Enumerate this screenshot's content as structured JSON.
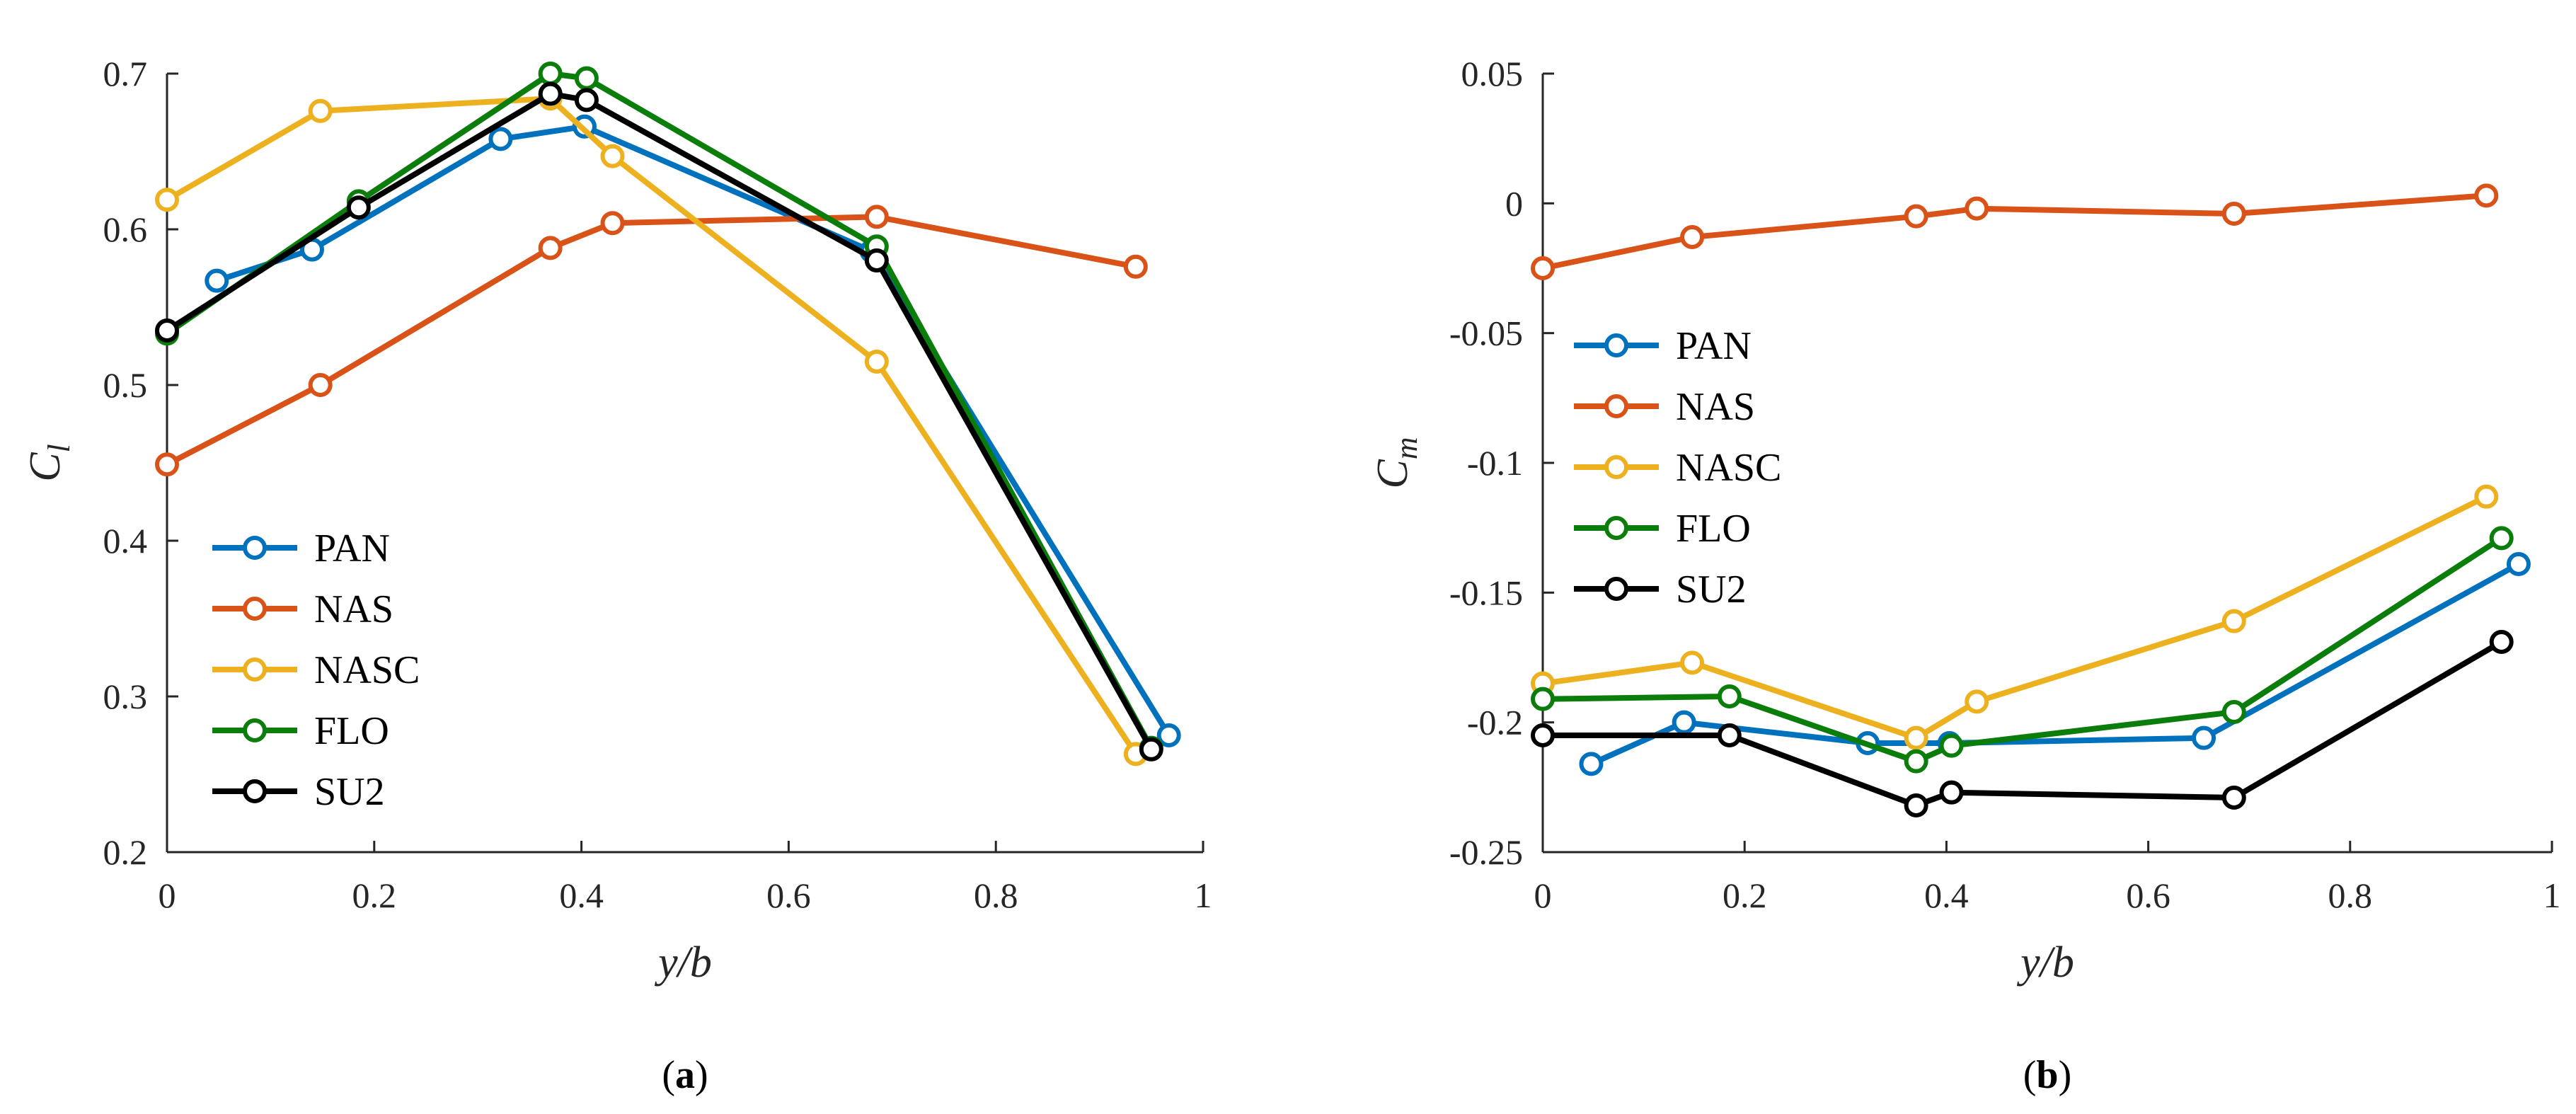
{
  "chart_data": [
    {
      "type": "line",
      "panel_label": "a",
      "xlabel": "y/b",
      "ylabel_base": "C",
      "ylabel_sub": "l",
      "xlim": [
        0,
        1
      ],
      "ylim": [
        0.2,
        0.7
      ],
      "xticks": [
        0,
        0.2,
        0.4,
        0.6,
        0.8,
        1
      ],
      "xtick_labels": [
        "0",
        "0.2",
        "0.4",
        "0.6",
        "0.8",
        "1"
      ],
      "yticks": [
        0.2,
        0.3,
        0.4,
        0.5,
        0.6,
        0.7
      ],
      "ytick_labels": [
        "0.2",
        "0.3",
        "0.4",
        "0.5",
        "0.6",
        "0.7"
      ],
      "grid": false,
      "legend_position": "lower-left",
      "series": [
        {
          "name": "PAN",
          "color": "#0072BD",
          "x": [
            0.048,
            0.14,
            0.322,
            0.403,
            0.68,
            0.967
          ],
          "y": [
            0.567,
            0.587,
            0.658,
            0.666,
            0.586,
            0.275
          ]
        },
        {
          "name": "NAS",
          "color": "#D95319",
          "x": [
            0.0,
            0.148,
            0.37,
            0.43,
            0.685,
            0.935
          ],
          "y": [
            0.449,
            0.5,
            0.588,
            0.604,
            0.608,
            0.576
          ]
        },
        {
          "name": "NASC",
          "color": "#EDB120",
          "x": [
            0.0,
            0.148,
            0.37,
            0.43,
            0.685,
            0.935
          ],
          "y": [
            0.619,
            0.676,
            0.684,
            0.647,
            0.515,
            0.263
          ]
        },
        {
          "name": "FLO",
          "color": "#0A7D0A",
          "x": [
            0.0,
            0.185,
            0.37,
            0.405,
            0.685,
            0.95
          ],
          "y": [
            0.533,
            0.618,
            0.7,
            0.697,
            0.589,
            0.267
          ]
        },
        {
          "name": "SU2",
          "color": "#000000",
          "x": [
            0.0,
            0.185,
            0.37,
            0.405,
            0.685,
            0.95
          ],
          "y": [
            0.535,
            0.614,
            0.687,
            0.683,
            0.58,
            0.266
          ]
        }
      ]
    },
    {
      "type": "line",
      "panel_label": "b",
      "xlabel": "y/b",
      "ylabel_base": "C",
      "ylabel_sub": "m",
      "xlim": [
        0,
        1
      ],
      "ylim": [
        -0.25,
        0.05
      ],
      "xticks": [
        0,
        0.2,
        0.4,
        0.6,
        0.8,
        1
      ],
      "xtick_labels": [
        "0",
        "0.2",
        "0.4",
        "0.6",
        "0.8",
        "1"
      ],
      "yticks": [
        -0.25,
        -0.2,
        -0.15,
        -0.1,
        -0.05,
        0,
        0.05
      ],
      "ytick_labels": [
        "-0.25",
        "-0.2",
        "-0.15",
        "-0.1",
        "-0.05",
        "0",
        "0.05"
      ],
      "grid": false,
      "legend_position": "middle-left",
      "series": [
        {
          "name": "PAN",
          "color": "#0072BD",
          "x": [
            0.048,
            0.14,
            0.322,
            0.403,
            0.655,
            0.967
          ],
          "y": [
            -0.216,
            -0.2,
            -0.208,
            -0.208,
            -0.206,
            -0.139
          ]
        },
        {
          "name": "NAS",
          "color": "#D95319",
          "x": [
            0.0,
            0.148,
            0.37,
            0.43,
            0.685,
            0.935
          ],
          "y": [
            -0.025,
            -0.013,
            -0.005,
            -0.002,
            -0.004,
            0.003
          ]
        },
        {
          "name": "NASC",
          "color": "#EDB120",
          "x": [
            0.0,
            0.148,
            0.37,
            0.43,
            0.685,
            0.935
          ],
          "y": [
            -0.185,
            -0.177,
            -0.206,
            -0.192,
            -0.161,
            -0.113
          ]
        },
        {
          "name": "FLO",
          "color": "#0A7D0A",
          "x": [
            0.0,
            0.185,
            0.37,
            0.405,
            0.685,
            0.95
          ],
          "y": [
            -0.191,
            -0.19,
            -0.215,
            -0.209,
            -0.196,
            -0.129
          ]
        },
        {
          "name": "SU2",
          "color": "#000000",
          "x": [
            0.0,
            0.185,
            0.37,
            0.405,
            0.685,
            0.95
          ],
          "y": [
            -0.205,
            -0.205,
            -0.232,
            -0.227,
            -0.229,
            -0.169
          ]
        }
      ]
    }
  ]
}
